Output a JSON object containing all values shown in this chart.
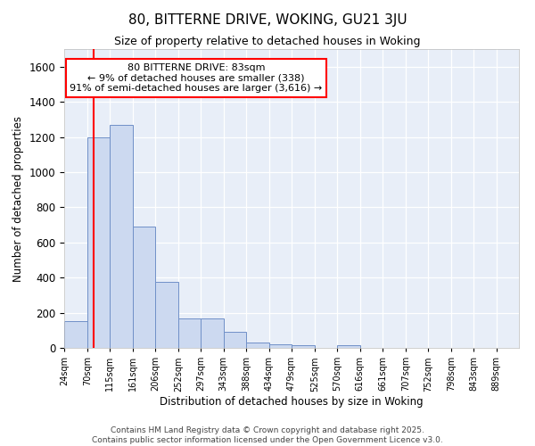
{
  "title": "80, BITTERNE DRIVE, WOKING, GU21 3JU",
  "subtitle": "Size of property relative to detached houses in Woking",
  "xlabel": "Distribution of detached houses by size in Woking",
  "ylabel": "Number of detached properties",
  "bar_color": "#ccd9f0",
  "bar_edge_color": "#7090c8",
  "background_color": "#e8eef8",
  "grid_color": "white",
  "annotation_text": "80 BITTERNE DRIVE: 83sqm\n← 9% of detached houses are smaller (338)\n91% of semi-detached houses are larger (3,616) →",
  "property_line_x": 83,
  "property_line_color": "red",
  "bin_edges": [
    24,
    70,
    115,
    161,
    206,
    252,
    297,
    343,
    388,
    434,
    479,
    525,
    570,
    616,
    661,
    707,
    752,
    798,
    843,
    889,
    934
  ],
  "bar_heights": [
    150,
    1200,
    1270,
    690,
    375,
    170,
    165,
    90,
    30,
    20,
    15,
    0,
    15,
    0,
    0,
    0,
    0,
    0,
    0,
    0
  ],
  "ylim": [
    0,
    1700
  ],
  "yticks": [
    0,
    200,
    400,
    600,
    800,
    1000,
    1200,
    1400,
    1600
  ],
  "footer": "Contains HM Land Registry data © Crown copyright and database right 2025.\nContains public sector information licensed under the Open Government Licence v3.0.",
  "annotation_box_color": "white",
  "annotation_box_edge": "red"
}
